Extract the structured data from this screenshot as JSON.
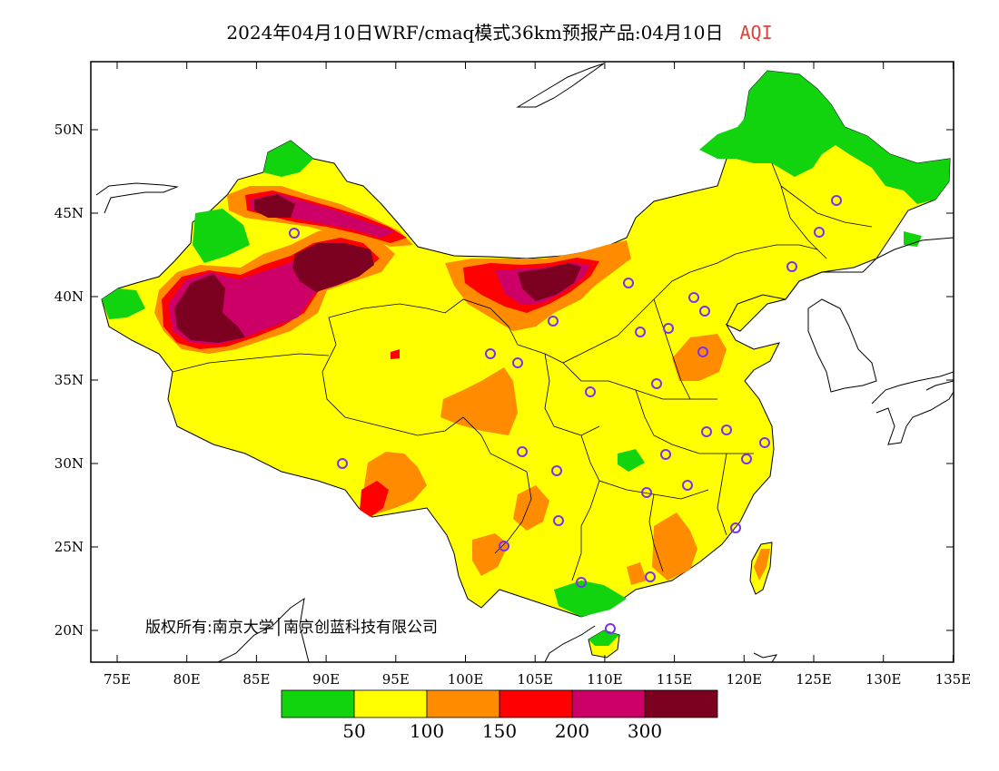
{
  "title": {
    "main": "2024年04月10日WRF/cmaq模式36km预报产品:04月10日",
    "variable": "AQI",
    "variable_color": "#d9453c"
  },
  "axes": {
    "lon_ticks": [
      "75E",
      "80E",
      "85E",
      "90E",
      "95E",
      "100E",
      "105E",
      "110E",
      "115E",
      "120E",
      "125E",
      "130E",
      "135E"
    ],
    "lat_ticks": [
      "50N",
      "45N",
      "40N",
      "35N",
      "30N",
      "25N",
      "20N"
    ]
  },
  "legend": {
    "colors": [
      "#11d40f",
      "#ffff00",
      "#ff8c00",
      "#ff0000",
      "#cc0066",
      "#7c0020"
    ],
    "labels": [
      "50",
      "100",
      "150",
      "200",
      "300"
    ]
  },
  "copyright": "版权所有:南京大学│南京创蓝科技有限公司",
  "colors": {
    "good": "#11d40f",
    "moderate": "#ffff00",
    "unhealthy_sensitive": "#ff8c00",
    "unhealthy": "#ff0000",
    "very_unhealthy": "#cc0066",
    "hazardous": "#7c0020",
    "station_marker": "#7b2ff2"
  }
}
